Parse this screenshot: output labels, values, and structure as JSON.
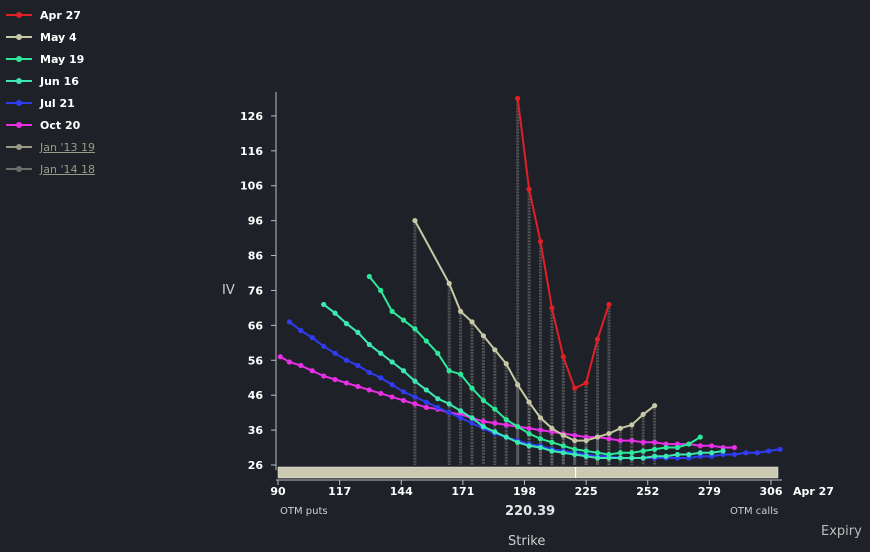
{
  "legend": [
    {
      "label": "Apr 27",
      "color": "#e01f26",
      "dimmed": false
    },
    {
      "label": "May 4",
      "color": "#c8c7a6",
      "dimmed": false
    },
    {
      "label": "May 19",
      "color": "#2ee89a",
      "dimmed": false
    },
    {
      "label": "Jun 16",
      "color": "#3de8b4",
      "dimmed": false
    },
    {
      "label": "Jul 21",
      "color": "#2f3cf0",
      "dimmed": false
    },
    {
      "label": "Oct 20",
      "color": "#e72fe6",
      "dimmed": false
    },
    {
      "label": "Jan '13 19",
      "color": "#9a9a86",
      "dimmed": true
    },
    {
      "label": "Jan '14 18",
      "color": "#6f6f6a",
      "dimmed": true
    }
  ],
  "labels": {
    "y_axis": "IV",
    "otm_puts": "OTM puts",
    "otm_calls": "OTM calls",
    "spot": "220.39",
    "x_axis": "Strike",
    "expiry": "Expiry",
    "expiry_tick": "Apr 27"
  },
  "chart_data": {
    "type": "line",
    "xlim": [
      90,
      306
    ],
    "ylim": [
      26,
      134
    ],
    "xticks": [
      90,
      117,
      144,
      171,
      198,
      225,
      252,
      279,
      306
    ],
    "yticks": [
      26,
      36,
      46,
      56,
      66,
      76,
      86,
      96,
      106,
      116,
      126
    ],
    "spot": 220.39,
    "bar_series": "May 4",
    "series": [
      {
        "name": "Apr 27",
        "color": "#e01f26",
        "points": [
          [
            195,
            131
          ],
          [
            200,
            105
          ],
          [
            205,
            90
          ],
          [
            210,
            71
          ],
          [
            215,
            57
          ],
          [
            220,
            48
          ],
          [
            225,
            49.5
          ],
          [
            230,
            62
          ],
          [
            235,
            72
          ]
        ]
      },
      {
        "name": "May 4",
        "color": "#c8c7a6",
        "points": [
          [
            150,
            96
          ],
          [
            165,
            78
          ],
          [
            170,
            70
          ],
          [
            175,
            67
          ],
          [
            180,
            63
          ],
          [
            185,
            59
          ],
          [
            190,
            55
          ],
          [
            195,
            49
          ],
          [
            200,
            44
          ],
          [
            205,
            39.5
          ],
          [
            210,
            36.5
          ],
          [
            215,
            34.5
          ],
          [
            220,
            33
          ],
          [
            225,
            33
          ],
          [
            230,
            34
          ],
          [
            235,
            35
          ],
          [
            240,
            36.5
          ],
          [
            245,
            37.5
          ],
          [
            250,
            40.5
          ],
          [
            255,
            43
          ]
        ]
      },
      {
        "name": "May 19",
        "color": "#2ee89a",
        "points": [
          [
            130,
            80
          ],
          [
            135,
            76
          ],
          [
            140,
            70
          ],
          [
            145,
            67.5
          ],
          [
            150,
            65
          ],
          [
            155,
            61.5
          ],
          [
            160,
            58
          ],
          [
            165,
            53
          ],
          [
            170,
            52
          ],
          [
            175,
            48
          ],
          [
            180,
            44.5
          ],
          [
            185,
            42
          ],
          [
            190,
            39
          ],
          [
            195,
            37
          ],
          [
            200,
            35
          ],
          [
            205,
            33.5
          ],
          [
            210,
            32.5
          ],
          [
            215,
            31.5
          ],
          [
            220,
            30.5
          ],
          [
            225,
            30
          ],
          [
            230,
            29.5
          ],
          [
            235,
            29
          ],
          [
            240,
            29.5
          ],
          [
            245,
            29.5
          ],
          [
            250,
            30
          ],
          [
            255,
            30.5
          ],
          [
            260,
            31
          ],
          [
            265,
            31
          ],
          [
            270,
            32
          ],
          [
            275,
            34
          ]
        ]
      },
      {
        "name": "Jun 16",
        "color": "#3de8b4",
        "points": [
          [
            110,
            72
          ],
          [
            115,
            69.5
          ],
          [
            120,
            66.5
          ],
          [
            125,
            64
          ],
          [
            130,
            60.5
          ],
          [
            135,
            58
          ],
          [
            140,
            55.5
          ],
          [
            145,
            53
          ],
          [
            150,
            50
          ],
          [
            155,
            47.5
          ],
          [
            160,
            45
          ],
          [
            165,
            43.5
          ],
          [
            170,
            41.5
          ],
          [
            175,
            39.5
          ],
          [
            180,
            37
          ],
          [
            185,
            35.5
          ],
          [
            190,
            34
          ],
          [
            195,
            32.5
          ],
          [
            200,
            31.5
          ],
          [
            205,
            31
          ],
          [
            210,
            30
          ],
          [
            215,
            29.5
          ],
          [
            220,
            29
          ],
          [
            225,
            28.5
          ],
          [
            230,
            28
          ],
          [
            235,
            28
          ],
          [
            240,
            28
          ],
          [
            245,
            28
          ],
          [
            250,
            28
          ],
          [
            255,
            28.5
          ],
          [
            260,
            28.5
          ],
          [
            265,
            29
          ],
          [
            270,
            29
          ],
          [
            275,
            29.5
          ],
          [
            280,
            29.5
          ],
          [
            285,
            30
          ]
        ]
      },
      {
        "name": "Jul 21",
        "color": "#2f3cf0",
        "points": [
          [
            95,
            67
          ],
          [
            100,
            64.5
          ],
          [
            105,
            62.5
          ],
          [
            110,
            60
          ],
          [
            115,
            58
          ],
          [
            120,
            56
          ],
          [
            125,
            54.5
          ],
          [
            130,
            52.5
          ],
          [
            135,
            51
          ],
          [
            140,
            49
          ],
          [
            145,
            47
          ],
          [
            150,
            45.5
          ],
          [
            155,
            44
          ],
          [
            160,
            42.5
          ],
          [
            165,
            41
          ],
          [
            170,
            39.5
          ],
          [
            175,
            38
          ],
          [
            180,
            36.5
          ],
          [
            185,
            35
          ],
          [
            190,
            34
          ],
          [
            195,
            33
          ],
          [
            200,
            32
          ],
          [
            205,
            31.5
          ],
          [
            210,
            30.5
          ],
          [
            215,
            30
          ],
          [
            220,
            29.5
          ],
          [
            225,
            29
          ],
          [
            230,
            28.5
          ],
          [
            235,
            28.5
          ],
          [
            240,
            28
          ],
          [
            245,
            28
          ],
          [
            250,
            28
          ],
          [
            255,
            28
          ],
          [
            260,
            28
          ],
          [
            265,
            28
          ],
          [
            270,
            28
          ],
          [
            275,
            28.5
          ],
          [
            280,
            28.5
          ],
          [
            285,
            29
          ],
          [
            290,
            29
          ],
          [
            295,
            29.5
          ],
          [
            300,
            29.5
          ],
          [
            305,
            30
          ],
          [
            310,
            30.5
          ]
        ]
      },
      {
        "name": "Oct 20",
        "color": "#e72fe6",
        "points": [
          [
            91,
            57
          ],
          [
            95,
            55.5
          ],
          [
            100,
            54.5
          ],
          [
            105,
            53
          ],
          [
            110,
            51.5
          ],
          [
            115,
            50.5
          ],
          [
            120,
            49.5
          ],
          [
            125,
            48.5
          ],
          [
            130,
            47.5
          ],
          [
            135,
            46.5
          ],
          [
            140,
            45.5
          ],
          [
            145,
            44.5
          ],
          [
            150,
            43.5
          ],
          [
            155,
            42.5
          ],
          [
            160,
            42
          ],
          [
            165,
            41
          ],
          [
            170,
            40.5
          ],
          [
            175,
            39.5
          ],
          [
            180,
            38.5
          ],
          [
            185,
            38
          ],
          [
            190,
            37.5
          ],
          [
            195,
            37
          ],
          [
            200,
            36.5
          ],
          [
            205,
            36
          ],
          [
            210,
            35.5
          ],
          [
            215,
            35
          ],
          [
            220,
            34.5
          ],
          [
            225,
            34
          ],
          [
            230,
            34
          ],
          [
            235,
            33.5
          ],
          [
            240,
            33
          ],
          [
            245,
            33
          ],
          [
            250,
            32.5
          ],
          [
            255,
            32.5
          ],
          [
            260,
            32
          ],
          [
            265,
            32
          ],
          [
            270,
            32
          ],
          [
            275,
            31.5
          ],
          [
            280,
            31.5
          ],
          [
            285,
            31
          ],
          [
            290,
            31
          ]
        ]
      }
    ]
  }
}
